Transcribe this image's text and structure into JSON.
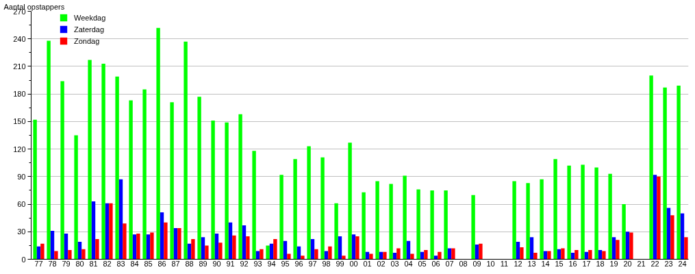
{
  "chart_data": {
    "type": "bar",
    "ylabel": "Aantal opstappers",
    "categories": [
      "77",
      "78",
      "79",
      "80",
      "81",
      "82",
      "83",
      "84",
      "85",
      "86",
      "87",
      "88",
      "89",
      "90",
      "91",
      "92",
      "93",
      "94",
      "95",
      "96",
      "97",
      "98",
      "99",
      "00",
      "01",
      "02",
      "03",
      "04",
      "05",
      "06",
      "07",
      "08",
      "09",
      "10",
      "11",
      "12",
      "13",
      "14",
      "15",
      "16",
      "17",
      "18",
      "19",
      "20",
      "21",
      "22",
      "23",
      "24"
    ],
    "series": [
      {
        "name": "Weekdag",
        "color": "#00ff00",
        "values": [
          152,
          238,
          194,
          135,
          217,
          213,
          199,
          173,
          185,
          252,
          171,
          237,
          177,
          151,
          149,
          158,
          118,
          15,
          92,
          109,
          123,
          111,
          61,
          127,
          73,
          85,
          82,
          91,
          76,
          75,
          75,
          null,
          70,
          null,
          null,
          85,
          83,
          87,
          109,
          102,
          103,
          100,
          93,
          60,
          null,
          200,
          187,
          189
        ]
      },
      {
        "name": "Zaterdag",
        "color": "#0000ff",
        "values": [
          14,
          31,
          28,
          19,
          63,
          61,
          87,
          27,
          27,
          51,
          34,
          17,
          24,
          28,
          40,
          37,
          9,
          17,
          20,
          14,
          22,
          9,
          25,
          27,
          8,
          8,
          7,
          20,
          8,
          4,
          12,
          null,
          16,
          null,
          null,
          19,
          24,
          9,
          11,
          7,
          8,
          10,
          24,
          30,
          null,
          92,
          56,
          50
        ]
      },
      {
        "name": "Zondag",
        "color": "#ff0000",
        "values": [
          17,
          9,
          10,
          11,
          22,
          61,
          39,
          28,
          29,
          40,
          34,
          22,
          15,
          18,
          26,
          25,
          11,
          22,
          6,
          4,
          11,
          14,
          4,
          25,
          6,
          8,
          12,
          6,
          10,
          8,
          12,
          null,
          17,
          null,
          null,
          13,
          7,
          9,
          12,
          10,
          10,
          9,
          21,
          29,
          null,
          90,
          48,
          24
        ]
      }
    ],
    "ylim": [
      0,
      270
    ],
    "yticks": [
      0,
      {
        "value": 15,
        "label": null
      },
      30,
      {
        "value": 45,
        "label": null
      },
      60,
      {
        "value": 75,
        "label": null
      },
      90,
      {
        "value": 105,
        "label": null
      },
      120,
      {
        "value": 135,
        "label": null
      },
      150,
      {
        "value": 165,
        "label": null
      },
      180,
      {
        "value": 195,
        "label": null
      },
      210,
      {
        "value": 225,
        "label": null
      },
      240,
      {
        "value": 255,
        "label": null
      },
      270
    ],
    "grid": "y",
    "legend": "top left"
  }
}
